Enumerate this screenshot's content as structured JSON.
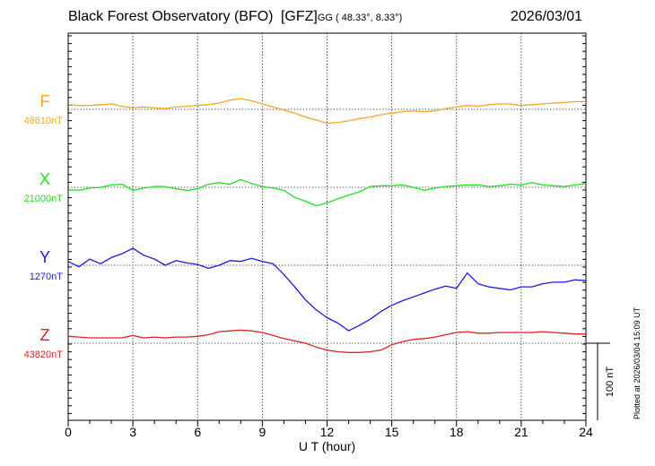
{
  "header": {
    "observatory": "Black Forest Observatory (BFO)",
    "institute": "[GFZ]",
    "coords": "GG ( 48.33°,  8.33°)",
    "date": "2026/03/01"
  },
  "plotted_at": "Plotted at 2026/03/04 15:09 UT",
  "chart_data": {
    "type": "line",
    "xlabel": "U T (hour)",
    "xlim": [
      0,
      24
    ],
    "x_ticks": [
      0,
      3,
      6,
      9,
      12,
      15,
      18,
      21,
      24
    ],
    "grid": true,
    "scale_bar_label": "100 nT",
    "scale_bar_nT": 100,
    "series": [
      {
        "name": "F",
        "baseline_label": "48610nT",
        "baseline_nT": 48610,
        "color": "#f5a623",
        "x": [
          0,
          0.5,
          1,
          1.5,
          2,
          2.5,
          3,
          3.5,
          4,
          4.5,
          5,
          5.5,
          6,
          6.5,
          7,
          7.5,
          8,
          8.5,
          9,
          9.5,
          10,
          10.5,
          11,
          11.5,
          12,
          12.5,
          13,
          13.5,
          14,
          14.5,
          15,
          15.5,
          16,
          16.5,
          17,
          17.5,
          18,
          18.5,
          19,
          19.5,
          20,
          20.5,
          21,
          21.5,
          22,
          22.5,
          23,
          23.5,
          24
        ],
        "y": [
          48616,
          48615,
          48615,
          48616,
          48617,
          48614,
          48612,
          48613,
          48612,
          48611,
          48613,
          48614,
          48615,
          48616,
          48618,
          48622,
          48624,
          48621,
          48617,
          48613,
          48609,
          48605,
          48600,
          48596,
          48592,
          48593,
          48595,
          48598,
          48600,
          48603,
          48605,
          48607,
          48608,
          48607,
          48608,
          48611,
          48613,
          48615,
          48614,
          48616,
          48617,
          48617,
          48615,
          48616,
          48617,
          48618,
          48619,
          48620,
          48620
        ]
      },
      {
        "name": "X",
        "baseline_label": "21000nT",
        "baseline_nT": 21000,
        "color": "#22dd22",
        "x": [
          0,
          0.5,
          1,
          1.5,
          2,
          2.5,
          3,
          3.5,
          4,
          4.5,
          5,
          5.5,
          6,
          6.5,
          7,
          7.5,
          8,
          8.5,
          9,
          9.5,
          10,
          10.5,
          11,
          11.5,
          12,
          12.5,
          13,
          13.5,
          14,
          14.5,
          15,
          15.5,
          16,
          16.5,
          17,
          17.5,
          18,
          18.5,
          19,
          19.5,
          20,
          20.5,
          21,
          21.5,
          22,
          22.5,
          23,
          23.5,
          24
        ],
        "y": [
          20997,
          20996,
          20999,
          21000,
          21003,
          21004,
          20996,
          20999,
          21001,
          21001,
          20998,
          20996,
          20998,
          21004,
          21006,
          21004,
          21010,
          21005,
          21001,
          20999,
          20996,
          20987,
          20982,
          20976,
          20980,
          20985,
          20990,
          20994,
          21001,
          21002,
          21002,
          21003,
          21000,
          20996,
          20999,
          21001,
          21002,
          21003,
          21003,
          21001,
          21002,
          21004,
          21003,
          21006,
          21003,
          21002,
          21001,
          21003,
          21005
        ]
      },
      {
        "name": "Y",
        "baseline_label": "1270nT",
        "baseline_nT": 1270,
        "color": "#1a1adb",
        "x": [
          0,
          0.5,
          1,
          1.5,
          2,
          2.5,
          3,
          3.5,
          4,
          4.5,
          5,
          5.5,
          6,
          6.5,
          7,
          7.5,
          8,
          8.5,
          9,
          9.5,
          10,
          10.5,
          11,
          11.5,
          12,
          12.5,
          13,
          13.5,
          14,
          14.5,
          15,
          15.5,
          16,
          16.5,
          17,
          17.5,
          18,
          18.5,
          19,
          19.5,
          20,
          20.5,
          21,
          21.5,
          22,
          22.5,
          23,
          23.5,
          24
        ],
        "y": [
          1275,
          1268,
          1278,
          1272,
          1280,
          1285,
          1292,
          1283,
          1278,
          1270,
          1276,
          1273,
          1271,
          1266,
          1270,
          1276,
          1275,
          1279,
          1275,
          1272,
          1258,
          1242,
          1225,
          1212,
          1202,
          1195,
          1185,
          1192,
          1200,
          1210,
          1218,
          1224,
          1229,
          1234,
          1239,
          1243,
          1240,
          1260,
          1246,
          1242,
          1240,
          1238,
          1242,
          1242,
          1246,
          1248,
          1248,
          1251,
          1250
        ]
      },
      {
        "name": "Z",
        "baseline_label": "43820nT",
        "baseline_nT": 43820,
        "color": "#dd2222",
        "x": [
          0,
          0.5,
          1,
          1.5,
          2,
          2.5,
          3,
          3.5,
          4,
          4.5,
          5,
          5.5,
          6,
          6.5,
          7,
          7.5,
          8,
          8.5,
          9,
          9.5,
          10,
          10.5,
          11,
          11.5,
          12,
          12.5,
          13,
          13.5,
          14,
          14.5,
          15,
          15.5,
          16,
          16.5,
          17,
          17.5,
          18,
          18.5,
          19,
          19.5,
          20,
          20.5,
          21,
          21.5,
          22,
          22.5,
          23,
          23.5,
          24
        ],
        "y": [
          43829,
          43828,
          43827,
          43827,
          43827,
          43827,
          43830,
          43827,
          43828,
          43827,
          43828,
          43828,
          43829,
          43831,
          43835,
          43836,
          43837,
          43836,
          43834,
          43830,
          43826,
          43823,
          43820,
          43815,
          43811,
          43809,
          43808,
          43808,
          43809,
          43811,
          43818,
          43822,
          43825,
          43826,
          43828,
          43831,
          43834,
          43835,
          43833,
          43833,
          43834,
          43834,
          43834,
          43834,
          43835,
          43834,
          43833,
          43832,
          43832
        ]
      }
    ]
  }
}
